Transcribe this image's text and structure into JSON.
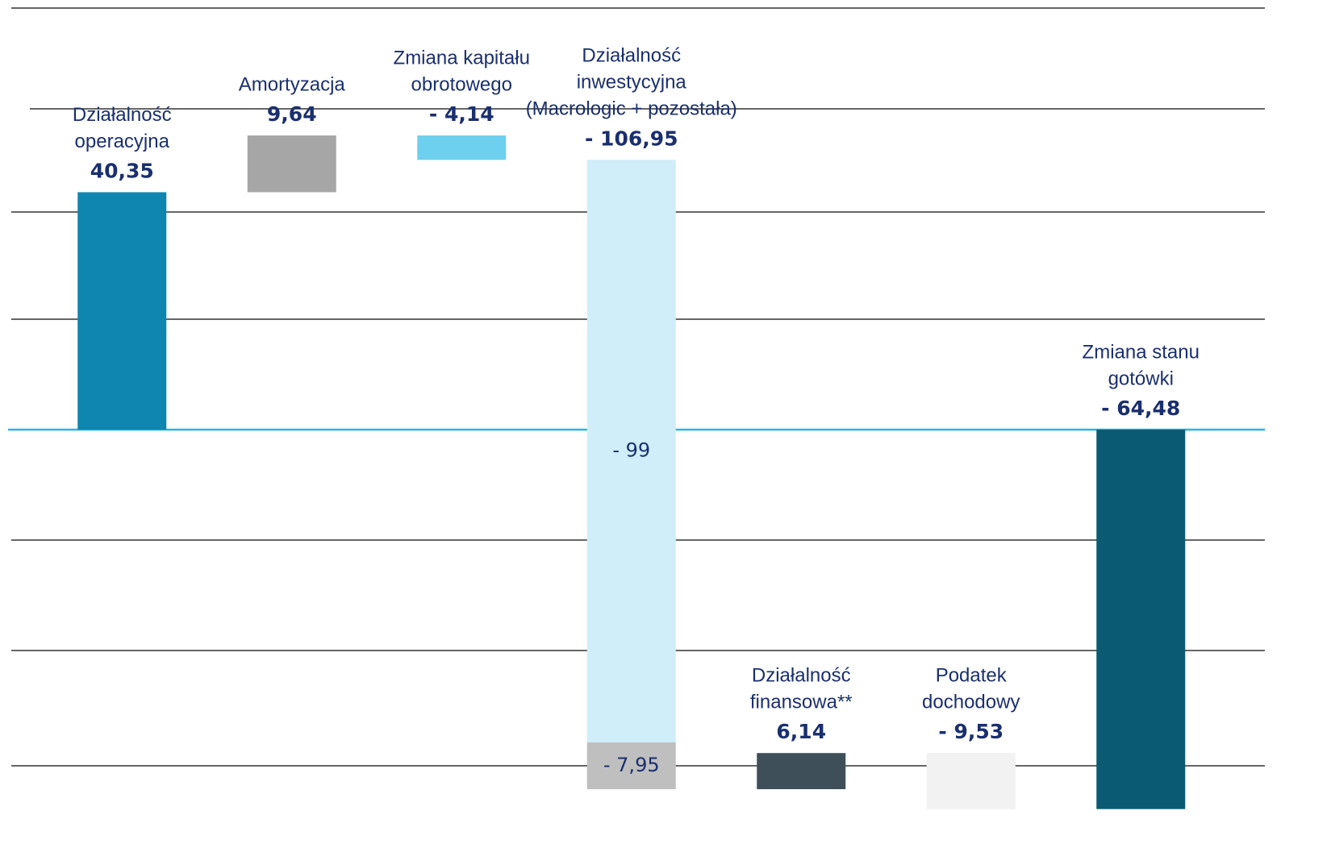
{
  "chart_data": {
    "type": "waterfall",
    "categories": [
      [
        "Działalność",
        "operacyjna"
      ],
      [
        "Amortyzacja"
      ],
      [
        "Zmiana kapitału",
        "obrotowego"
      ],
      [
        "Działalność",
        "inwestycyjna",
        "(Macrologic + pozostała)"
      ],
      [
        "Działalność",
        "finansowa**"
      ],
      [
        "Podatek",
        "dochodowy"
      ],
      [
        "Zmiana stanu",
        "gotówki"
      ]
    ],
    "values": [
      40.35,
      9.64,
      -4.14,
      -106.95,
      6.14,
      -9.53,
      -64.48
    ],
    "value_labels": [
      "40,35",
      "9,64",
      "- 4,14",
      "- 106,95",
      "6,14",
      "- 9,53",
      "- 64,48"
    ],
    "colors": [
      "#0e86b0",
      "#a6a6a6",
      "#6dd0ef",
      null,
      "#3f4f59",
      "#f2f2f2",
      "#0a5a73"
    ],
    "total_index": 6,
    "segments": {
      "index": 3,
      "parts": [
        {
          "value": -99,
          "label": "- 99",
          "color": "#d0eef9"
        },
        {
          "value": -7.95,
          "label": "- 7,95",
          "color": "#bfbfbf"
        }
      ]
    },
    "ylim": [
      -70,
      72
    ]
  }
}
